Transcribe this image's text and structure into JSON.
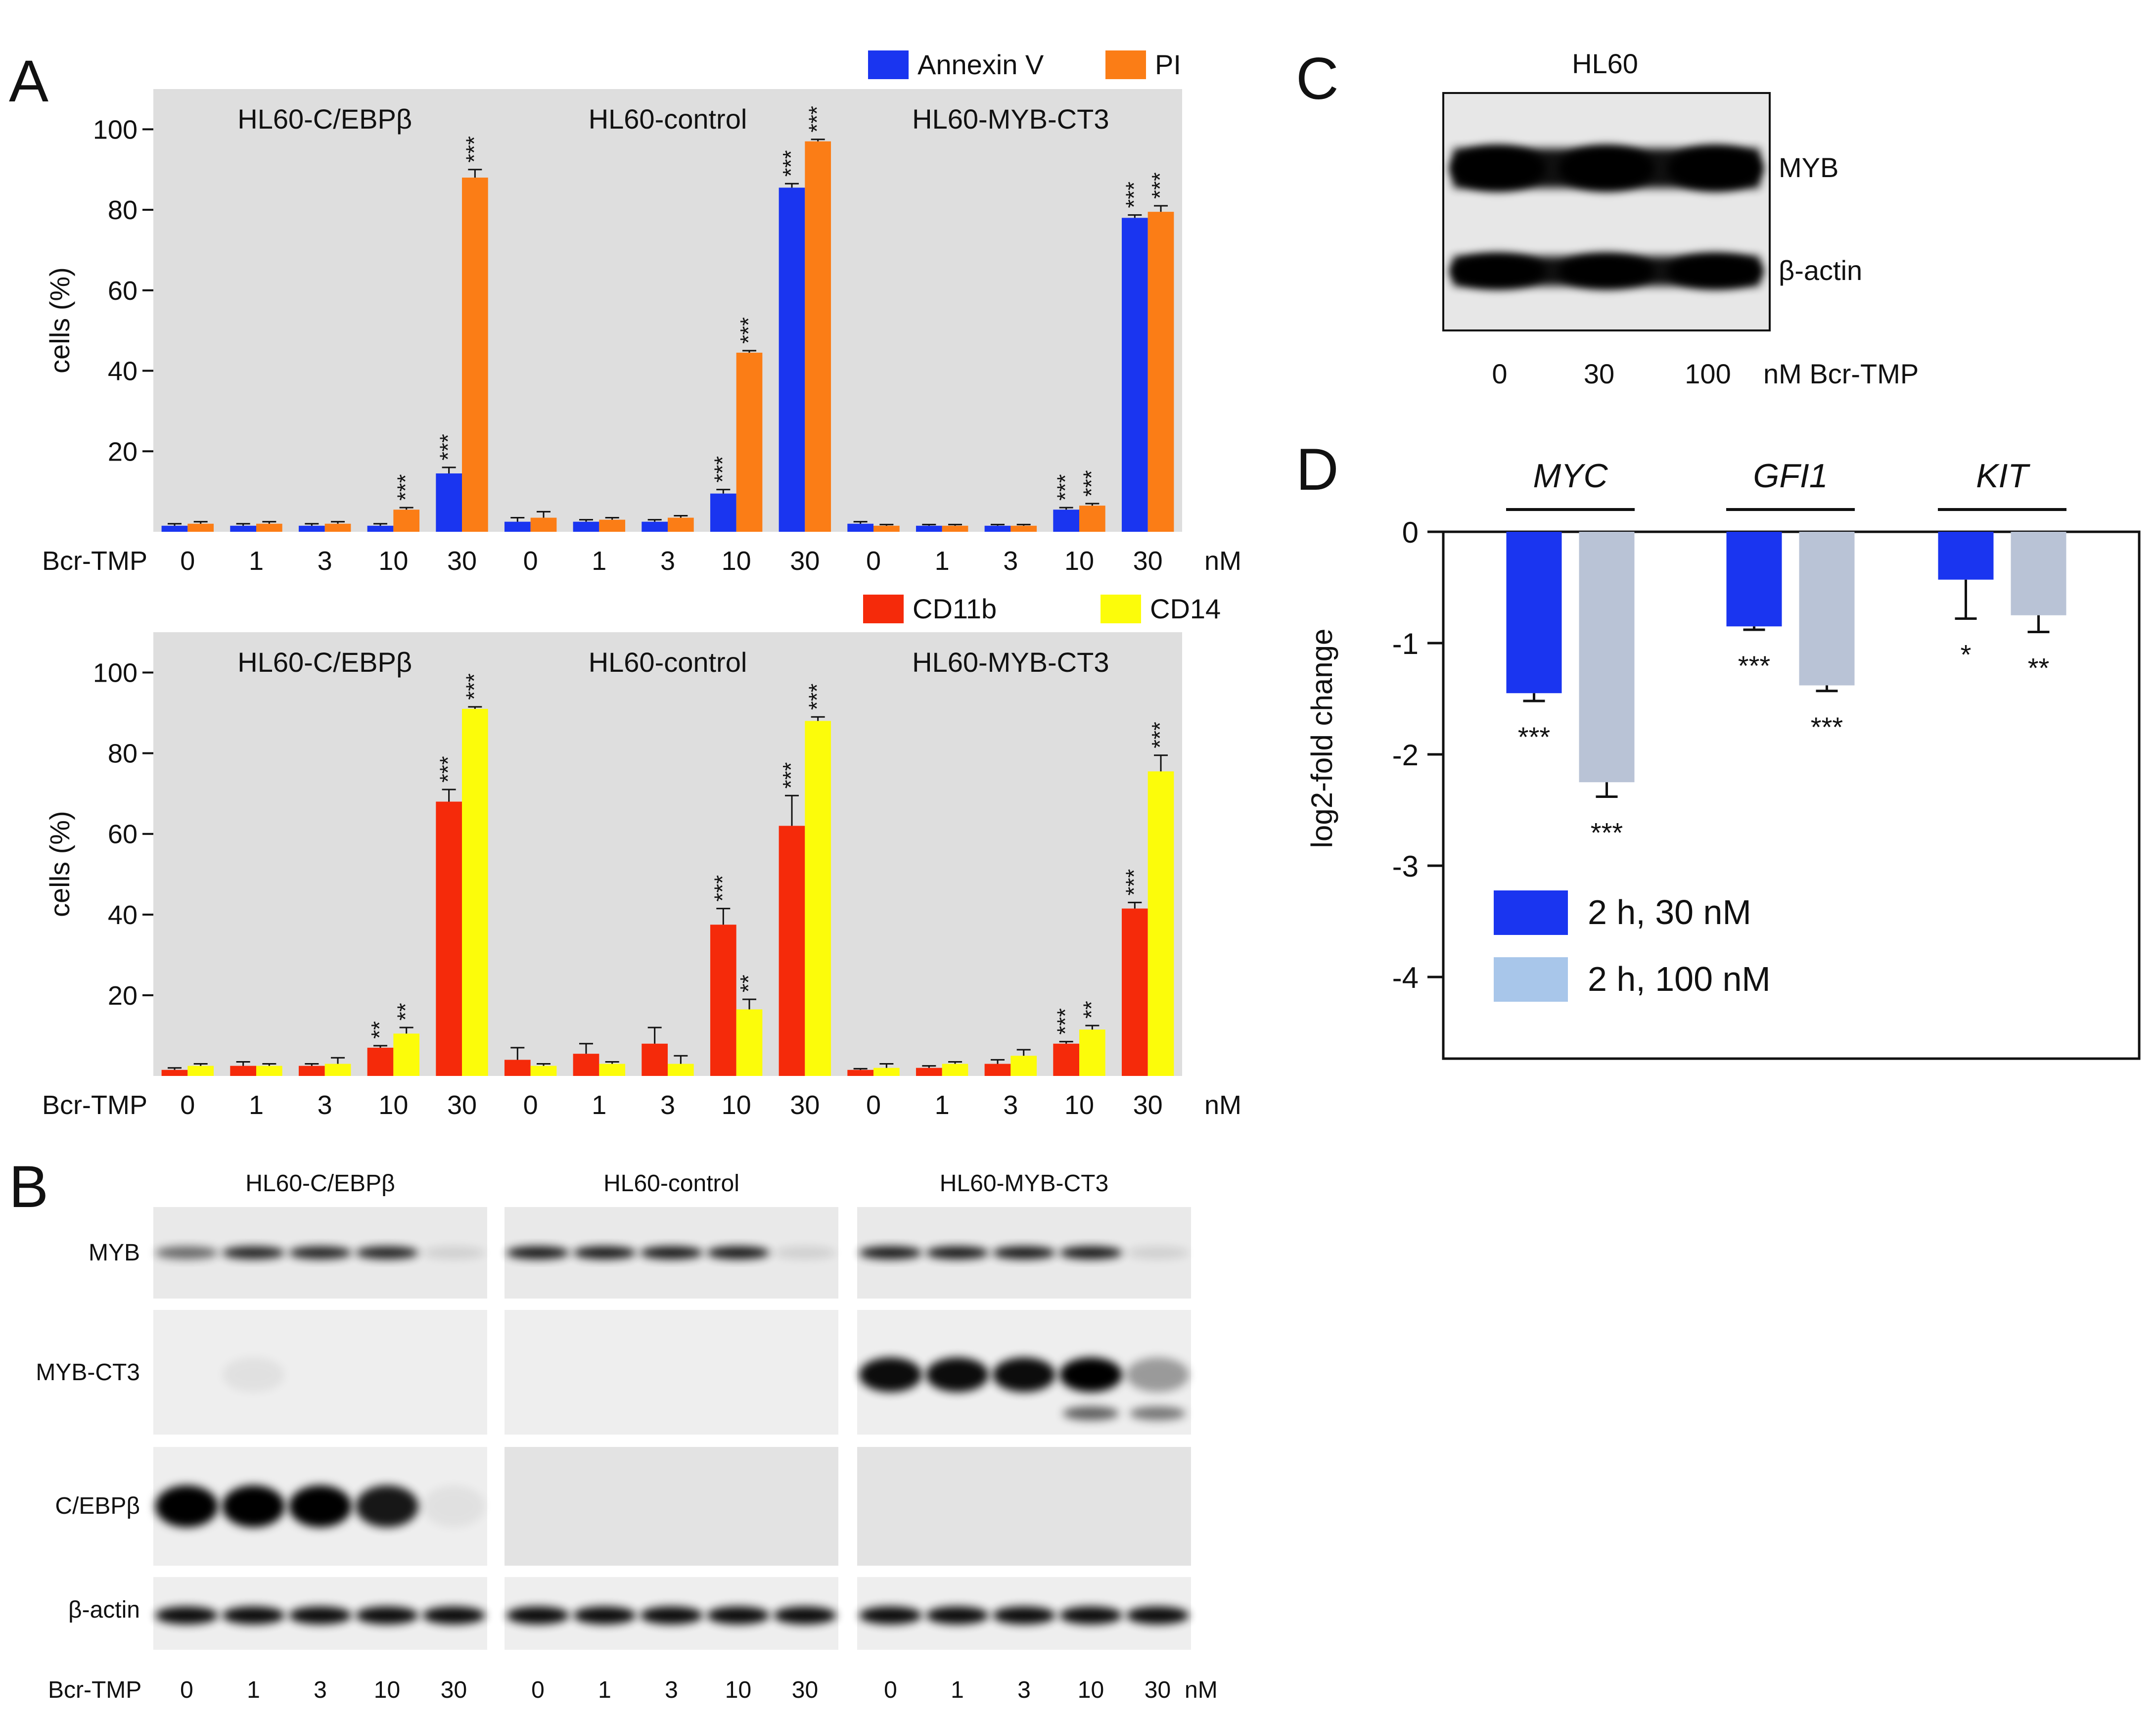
{
  "panels": {
    "a": {
      "letter": "A"
    },
    "b": {
      "letter": "B"
    },
    "c": {
      "letter": "C"
    },
    "d": {
      "letter": "D"
    }
  },
  "colors": {
    "annexin": "#1a35f0",
    "pi": "#fb7d16",
    "cd11b": "#f52a0a",
    "cd14": "#fcfc0a",
    "d30": "#1a35f0",
    "d100": "#b9c3d6",
    "legend100": "#a8c6ea",
    "plotbg": "#dedede"
  },
  "chart_data": [
    {
      "type": "bar",
      "id": "A-top",
      "ylabel": "cells (%)",
      "ylim": [
        0,
        110
      ],
      "yticks": [
        20,
        40,
        60,
        80,
        100
      ],
      "groups": [
        "HL60-C/EBPβ",
        "HL60-control",
        "HL60-MYB-CT3"
      ],
      "categories": [
        "0",
        "1",
        "3",
        "10",
        "30"
      ],
      "xaxis_prefix": "Bcr-TMP",
      "xaxis_unit": "nM",
      "series": [
        {
          "name": "Annexin V",
          "color": "#1a35f0",
          "values": [
            [
              1.5,
              1.5,
              1.5,
              1.5,
              14.5
            ],
            [
              2.5,
              2.5,
              2.5,
              9.5,
              85.5
            ],
            [
              2,
              1.5,
              1.5,
              5.5,
              78
            ]
          ],
          "errors": [
            [
              0.5,
              0.5,
              0.5,
              0.5,
              1.5
            ],
            [
              1.0,
              0.5,
              0.5,
              1.0,
              1.0
            ],
            [
              0.5,
              0.3,
              0.3,
              0.5,
              0.7
            ]
          ],
          "sig": [
            [
              "",
              "",
              "",
              "",
              "***"
            ],
            [
              "",
              "",
              "",
              "***",
              "***"
            ],
            [
              "",
              "",
              "",
              "***",
              "***"
            ]
          ]
        },
        {
          "name": "PI",
          "color": "#fb7d16",
          "values": [
            [
              2,
              2,
              2,
              5.5,
              88
            ],
            [
              3.5,
              3,
              3.5,
              44.5,
              97
            ],
            [
              1.5,
              1.5,
              1.5,
              6.5,
              79.5
            ]
          ],
          "errors": [
            [
              0.5,
              0.5,
              0.5,
              0.5,
              2
            ],
            [
              1.5,
              0.5,
              0.5,
              0.5,
              0.5
            ],
            [
              0.3,
              0.3,
              0.3,
              0.5,
              1.5
            ]
          ],
          "sig": [
            [
              "",
              "",
              "",
              "***",
              "***"
            ],
            [
              "",
              "",
              "",
              "***",
              "***"
            ],
            [
              "",
              "",
              "",
              "***",
              "***"
            ]
          ]
        }
      ]
    },
    {
      "type": "bar",
      "id": "A-bottom",
      "ylabel": "cells (%)",
      "ylim": [
        0,
        110
      ],
      "yticks": [
        20,
        40,
        60,
        80,
        100
      ],
      "groups": [
        "HL60-C/EBPβ",
        "HL60-control",
        "HL60-MYB-CT3"
      ],
      "categories": [
        "0",
        "1",
        "3",
        "10",
        "30"
      ],
      "xaxis_prefix": "Bcr-TMP",
      "xaxis_unit": "nM",
      "series": [
        {
          "name": "CD11b",
          "color": "#f52a0a",
          "values": [
            [
              1.5,
              2.5,
              2.5,
              7,
              68
            ],
            [
              4,
              5.5,
              8,
              37.5,
              62
            ],
            [
              1.5,
              2,
              3,
              8,
              41.5
            ]
          ],
          "errors": [
            [
              0.5,
              1,
              0.5,
              0.5,
              3
            ],
            [
              3,
              2.5,
              4,
              4,
              7.5
            ],
            [
              0.3,
              0.5,
              1,
              0.5,
              1.5
            ]
          ],
          "sig": [
            [
              "",
              "",
              "",
              "**",
              "***"
            ],
            [
              "",
              "",
              "",
              "***",
              "***"
            ],
            [
              "",
              "",
              "",
              "***",
              "***"
            ]
          ]
        },
        {
          "name": "CD14",
          "color": "#fcfc0a",
          "values": [
            [
              2.5,
              2.5,
              3,
              10.5,
              91
            ],
            [
              2.5,
              3,
              3,
              16.5,
              88
            ],
            [
              2,
              3,
              5,
              11.5,
              75.5
            ]
          ],
          "errors": [
            [
              0.5,
              0.5,
              1.5,
              1.5,
              0.5
            ],
            [
              0.5,
              0.5,
              2,
              2.5,
              1
            ],
            [
              1,
              0.5,
              1.5,
              1,
              4
            ]
          ],
          "sig": [
            [
              "",
              "",
              "",
              "**",
              "***"
            ],
            [
              "",
              "",
              "",
              "**",
              "***"
            ],
            [
              "",
              "",
              "",
              "**",
              "***"
            ]
          ]
        }
      ]
    },
    {
      "type": "bar",
      "id": "D",
      "ylabel": "log2-fold change",
      "ylim": [
        -4.7,
        0
      ],
      "yticks": [
        0,
        -1,
        -2,
        -3,
        -4
      ],
      "categories": [
        "MYC",
        "GFI1",
        "KIT"
      ],
      "series": [
        {
          "name": "2 h, 30 nM",
          "color": "#1a35f0",
          "values": [
            -1.45,
            -0.85,
            -0.43
          ],
          "errors": [
            0.07,
            0.03,
            0.35
          ],
          "sig": [
            "***",
            "***",
            "*"
          ]
        },
        {
          "name": "2 h, 100 nM",
          "color": "#b9c3d6",
          "values": [
            -2.25,
            -1.38,
            -0.75
          ],
          "errors": [
            0.13,
            0.05,
            0.15
          ],
          "sig": [
            "***",
            "***",
            "**"
          ]
        }
      ],
      "legend": [
        "2 h, 30 nM",
        "2 h, 100 nM"
      ]
    }
  ],
  "blotB": {
    "groups": [
      "HL60-C/EBPβ",
      "HL60-control",
      "HL60-MYB-CT3"
    ],
    "rows": [
      "MYB",
      "MYB-CT3",
      "C/EBPβ",
      "β-actin"
    ],
    "xaxis_prefix": "Bcr-TMP",
    "lanes": [
      "0",
      "1",
      "3",
      "10",
      "30"
    ],
    "unit": "nM",
    "bands": {
      "MYB": [
        [
          0.55,
          0.85,
          0.85,
          0.85,
          0.1
        ],
        [
          0.9,
          0.9,
          0.9,
          0.9,
          0.1
        ],
        [
          0.9,
          0.9,
          0.9,
          0.9,
          0.1
        ]
      ],
      "MYB-CT3": [
        [
          0,
          0.05,
          0,
          0,
          0
        ],
        [
          0,
          0,
          0,
          0,
          0
        ],
        [
          0.95,
          0.95,
          0.95,
          1,
          0.35
        ]
      ],
      "C/EBPβ": [
        [
          1,
          1,
          1,
          0.9,
          0.05
        ],
        [
          0,
          0,
          0,
          0,
          0
        ],
        [
          0,
          0,
          0,
          0,
          0
        ]
      ],
      "β-actin": [
        [
          0.95,
          0.95,
          0.95,
          0.95,
          0.95
        ],
        [
          0.95,
          0.95,
          0.95,
          0.95,
          0.95
        ],
        [
          0.95,
          0.95,
          0.95,
          0.95,
          0.95
        ]
      ]
    }
  },
  "blotC": {
    "title": "HL60",
    "rows": [
      "MYB",
      "β-actin"
    ],
    "lanes": [
      "0",
      "30",
      "100"
    ],
    "unit": "nM Bcr-TMP"
  }
}
